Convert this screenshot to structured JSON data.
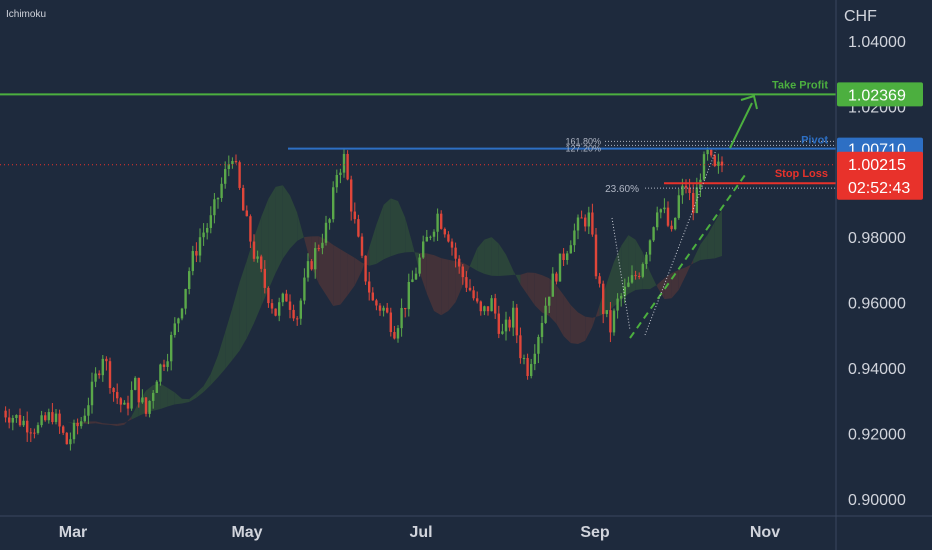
{
  "indicator_label": "Ichimoku",
  "currency": "CHF",
  "colors": {
    "background": "#1e2a3d",
    "grid": "#2b3850",
    "up": "#5aa84a",
    "down": "#e0463a",
    "take_profit": "#4caf3f",
    "stop_loss": "#e8322b",
    "pivot": "#2d6fc4",
    "cloud_green": "#2e4a3a",
    "cloud_red": "#4a3438"
  },
  "labels": {
    "take_profit": "Take Profit",
    "stop_loss": "Stop Loss",
    "pivot": "Pivot"
  },
  "price_badges": {
    "take_profit": "1.02369",
    "pivot": "1.00710",
    "last": "1.00215",
    "countdown": "02:52:43"
  },
  "fib_labels": [
    "161.80%",
    "127.20%",
    "23.60%"
  ],
  "chart_data": {
    "type": "candlestick",
    "title": "",
    "x_tick_labels": [
      "Mar",
      "May",
      "Jul",
      "Sep",
      "Nov"
    ],
    "y_tick_labels": [
      "1.04000",
      "1.02000",
      "0.98000",
      "0.96000",
      "0.94000",
      "0.92000",
      "0.90000"
    ],
    "ylim": [
      0.8955,
      1.0445
    ],
    "grid": false,
    "levels": {
      "take_profit": 1.02369,
      "pivot": 1.0071,
      "stop_loss": 0.9965,
      "last_price": 1.00215,
      "fib_161_8": 1.0093,
      "fib_127_2": 1.0081,
      "fib_23_6": 0.995
    },
    "price_path": [
      [
        0,
        0.927
      ],
      [
        6,
        0.9235
      ],
      [
        10,
        0.9215
      ],
      [
        14,
        0.926
      ],
      [
        18,
        0.917
      ],
      [
        22,
        0.924
      ],
      [
        25,
        0.933
      ],
      [
        28,
        0.9445
      ],
      [
        31,
        0.933
      ],
      [
        34,
        0.927
      ],
      [
        37,
        0.935
      ],
      [
        40,
        0.926
      ],
      [
        43,
        0.938
      ],
      [
        46,
        0.945
      ],
      [
        49,
        0.956
      ],
      [
        52,
        0.97
      ],
      [
        55,
        0.98
      ],
      [
        58,
        0.985
      ],
      [
        61,
        0.996
      ],
      [
        64,
        1.006
      ],
      [
        67,
        0.988
      ],
      [
        70,
        0.975
      ],
      [
        73,
        0.965
      ],
      [
        76,
        0.957
      ],
      [
        79,
        0.962
      ],
      [
        82,
        0.956
      ],
      [
        85,
        0.97
      ],
      [
        88,
        0.978
      ],
      [
        91,
        0.985
      ],
      [
        93,
        1.0
      ],
      [
        95,
        1.004
      ],
      [
        97,
        0.99
      ],
      [
        100,
        0.972
      ],
      [
        103,
        0.96
      ],
      [
        106,
        0.958
      ],
      [
        109,
        0.952
      ],
      [
        112,
        0.96
      ],
      [
        115,
        0.97
      ],
      [
        118,
        0.979
      ],
      [
        121,
        0.987
      ],
      [
        124,
        0.981
      ],
      [
        127,
        0.97
      ],
      [
        130,
        0.964
      ],
      [
        133,
        0.956
      ],
      [
        136,
        0.96
      ],
      [
        139,
        0.95
      ],
      [
        142,
        0.956
      ],
      [
        144,
        0.945
      ],
      [
        146,
        0.94
      ],
      [
        149,
        0.951
      ],
      [
        152,
        0.964
      ],
      [
        155,
        0.972
      ],
      [
        158,
        0.98
      ],
      [
        161,
        0.985
      ],
      [
        163,
        0.986
      ],
      [
        165,
        0.97
      ],
      [
        167,
        0.958
      ],
      [
        169,
        0.952
      ],
      [
        171,
        0.96
      ],
      [
        174,
        0.965
      ],
      [
        177,
        0.97
      ],
      [
        180,
        0.98
      ],
      [
        182,
        0.99
      ],
      [
        184,
        0.987
      ],
      [
        186,
        0.98
      ],
      [
        188,
        0.992
      ],
      [
        190,
        0.996
      ],
      [
        192,
        0.988
      ],
      [
        194,
        1.0
      ],
      [
        196,
        1.005
      ],
      [
        198,
        1.0
      ],
      [
        200,
        1.0021
      ]
    ]
  }
}
